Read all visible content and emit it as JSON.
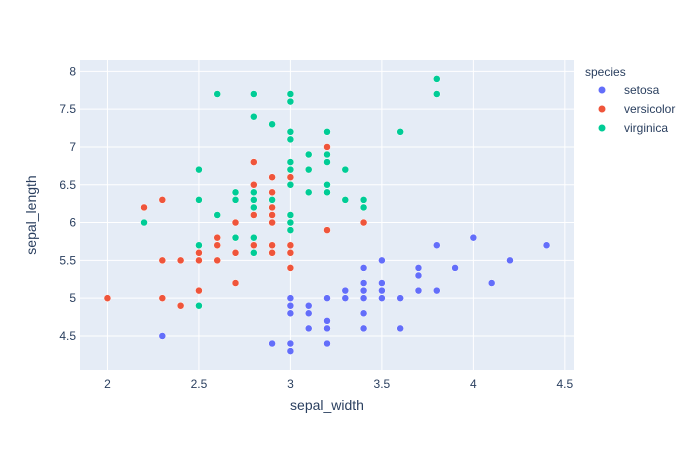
{
  "chart_data": {
    "type": "scatter",
    "xlabel": "sepal_width",
    "ylabel": "sepal_length",
    "xlim": [
      1.85,
      4.55
    ],
    "ylim": [
      4.05,
      8.15
    ],
    "xticks": [
      2,
      2.5,
      3,
      3.5,
      4,
      4.5
    ],
    "xtick_labels": [
      "2",
      "2.5",
      "3",
      "3.5",
      "4",
      "4.5"
    ],
    "yticks": [
      4.5,
      5,
      5.5,
      6,
      6.5,
      7,
      7.5,
      8
    ],
    "ytick_labels": [
      "4.5",
      "5",
      "5.5",
      "6",
      "6.5",
      "7",
      "7.5",
      "8"
    ],
    "grid": true,
    "legend_title": "species",
    "legend_position": "right",
    "series": [
      {
        "name": "setosa",
        "color": "#636efa",
        "points": [
          [
            2.3,
            4.5
          ],
          [
            2.9,
            4.4
          ],
          [
            3.0,
            4.4
          ],
          [
            3.0,
            4.3
          ],
          [
            3.2,
            4.4
          ],
          [
            3.0,
            4.8
          ],
          [
            3.0,
            4.9
          ],
          [
            3.0,
            5.0
          ],
          [
            3.1,
            4.8
          ],
          [
            3.1,
            4.9
          ],
          [
            3.1,
            4.6
          ],
          [
            3.2,
            4.6
          ],
          [
            3.2,
            4.7
          ],
          [
            3.2,
            5.0
          ],
          [
            3.3,
            5.0
          ],
          [
            3.3,
            5.1
          ],
          [
            3.4,
            4.6
          ],
          [
            3.4,
            4.8
          ],
          [
            3.4,
            5.0
          ],
          [
            3.4,
            5.1
          ],
          [
            3.4,
            5.2
          ],
          [
            3.4,
            5.4
          ],
          [
            3.5,
            5.0
          ],
          [
            3.5,
            5.1
          ],
          [
            3.5,
            5.2
          ],
          [
            3.5,
            5.5
          ],
          [
            3.6,
            4.6
          ],
          [
            3.6,
            5.0
          ],
          [
            3.7,
            5.1
          ],
          [
            3.7,
            5.3
          ],
          [
            3.7,
            5.4
          ],
          [
            3.8,
            5.1
          ],
          [
            3.8,
            5.7
          ],
          [
            3.9,
            5.4
          ],
          [
            4.0,
            5.8
          ],
          [
            4.1,
            5.2
          ],
          [
            4.2,
            5.5
          ],
          [
            4.4,
            5.7
          ]
        ]
      },
      {
        "name": "versicolor",
        "color": "#ef553b",
        "points": [
          [
            2.0,
            5.0
          ],
          [
            2.2,
            6.2
          ],
          [
            2.3,
            5.0
          ],
          [
            2.3,
            5.5
          ],
          [
            2.3,
            6.3
          ],
          [
            2.4,
            4.9
          ],
          [
            2.4,
            5.5
          ],
          [
            2.5,
            5.1
          ],
          [
            2.5,
            5.5
          ],
          [
            2.5,
            5.6
          ],
          [
            2.5,
            6.3
          ],
          [
            2.6,
            5.5
          ],
          [
            2.6,
            5.7
          ],
          [
            2.6,
            5.8
          ],
          [
            2.7,
            5.2
          ],
          [
            2.7,
            5.6
          ],
          [
            2.7,
            5.8
          ],
          [
            2.7,
            6.0
          ],
          [
            2.8,
            5.7
          ],
          [
            2.8,
            6.1
          ],
          [
            2.8,
            6.5
          ],
          [
            2.8,
            6.8
          ],
          [
            2.9,
            5.6
          ],
          [
            2.9,
            5.7
          ],
          [
            2.9,
            6.0
          ],
          [
            2.9,
            6.1
          ],
          [
            2.9,
            6.2
          ],
          [
            2.9,
            6.4
          ],
          [
            2.9,
            6.6
          ],
          [
            3.0,
            5.4
          ],
          [
            3.0,
            5.6
          ],
          [
            3.0,
            5.7
          ],
          [
            3.0,
            5.9
          ],
          [
            3.0,
            6.1
          ],
          [
            3.0,
            6.6
          ],
          [
            3.0,
            6.7
          ],
          [
            3.1,
            6.7
          ],
          [
            3.1,
            6.9
          ],
          [
            3.2,
            5.9
          ],
          [
            3.2,
            6.4
          ],
          [
            3.2,
            7.0
          ],
          [
            3.3,
            6.3
          ],
          [
            3.4,
            6.0
          ]
        ]
      },
      {
        "name": "virginica",
        "color": "#00cc96",
        "points": [
          [
            2.2,
            6.0
          ],
          [
            2.5,
            4.9
          ],
          [
            2.5,
            5.7
          ],
          [
            2.5,
            6.3
          ],
          [
            2.5,
            6.7
          ],
          [
            2.6,
            6.1
          ],
          [
            2.6,
            7.7
          ],
          [
            2.7,
            5.8
          ],
          [
            2.7,
            6.3
          ],
          [
            2.7,
            6.4
          ],
          [
            2.8,
            5.6
          ],
          [
            2.8,
            5.8
          ],
          [
            2.8,
            6.2
          ],
          [
            2.8,
            6.3
          ],
          [
            2.8,
            6.4
          ],
          [
            2.8,
            7.4
          ],
          [
            2.8,
            7.7
          ],
          [
            2.9,
            6.3
          ],
          [
            2.9,
            7.3
          ],
          [
            3.0,
            5.9
          ],
          [
            3.0,
            6.0
          ],
          [
            3.0,
            6.1
          ],
          [
            3.0,
            6.5
          ],
          [
            3.0,
            6.7
          ],
          [
            3.0,
            6.8
          ],
          [
            3.0,
            7.1
          ],
          [
            3.0,
            7.2
          ],
          [
            3.0,
            7.6
          ],
          [
            3.0,
            7.7
          ],
          [
            3.1,
            6.4
          ],
          [
            3.1,
            6.7
          ],
          [
            3.1,
            6.9
          ],
          [
            3.2,
            6.4
          ],
          [
            3.2,
            6.5
          ],
          [
            3.2,
            6.8
          ],
          [
            3.2,
            6.9
          ],
          [
            3.2,
            7.2
          ],
          [
            3.3,
            6.3
          ],
          [
            3.3,
            6.7
          ],
          [
            3.4,
            6.2
          ],
          [
            3.4,
            6.3
          ],
          [
            3.6,
            7.2
          ],
          [
            3.8,
            7.7
          ],
          [
            3.8,
            7.9
          ]
        ]
      }
    ]
  }
}
